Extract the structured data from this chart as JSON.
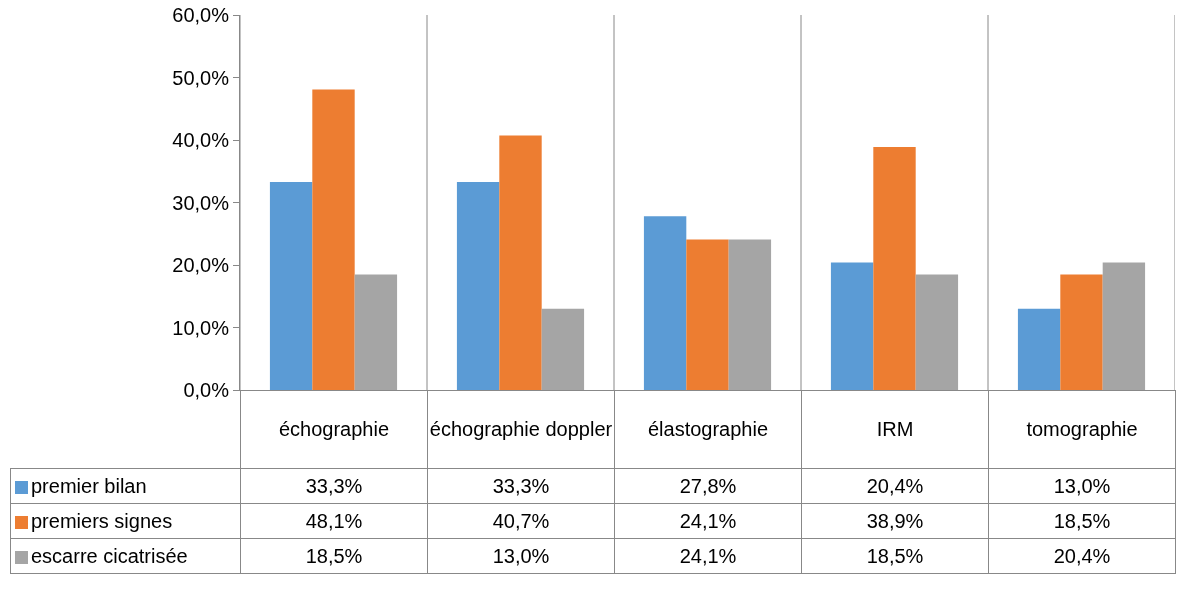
{
  "chart_data": {
    "type": "bar",
    "categories": [
      "échographie",
      "échographie doppler",
      "élastographie",
      "IRM",
      "tomographie"
    ],
    "series": [
      {
        "name": "premier bilan",
        "color": "#5b9bd5",
        "values": [
          33.3,
          33.3,
          27.8,
          20.4,
          13.0
        ],
        "value_labels": [
          "33,3%",
          "33,3%",
          "27,8%",
          "20,4%",
          "13,0%"
        ]
      },
      {
        "name": "premiers signes",
        "color": "#ed7d31",
        "values": [
          48.1,
          40.7,
          24.1,
          38.9,
          18.5
        ],
        "value_labels": [
          "48,1%",
          "40,7%",
          "24,1%",
          "38,9%",
          "18,5%"
        ]
      },
      {
        "name": "escarre cicatrisée",
        "color": "#a5a5a5",
        "values": [
          18.5,
          13.0,
          24.1,
          18.5,
          20.4
        ],
        "value_labels": [
          "18,5%",
          "13,0%",
          "24,1%",
          "18,5%",
          "20,4%"
        ]
      }
    ],
    "ylim": [
      0,
      60
    ],
    "yticks": [
      {
        "value": 0,
        "label": "0,0%"
      },
      {
        "value": 10,
        "label": "10,0%"
      },
      {
        "value": 20,
        "label": "20,0%"
      },
      {
        "value": 30,
        "label": "30,0%"
      },
      {
        "value": 40,
        "label": "40,0%"
      },
      {
        "value": 50,
        "label": "50,0%"
      },
      {
        "value": 60,
        "label": "60,0%"
      }
    ],
    "grid": false,
    "legend": "bottom left"
  }
}
